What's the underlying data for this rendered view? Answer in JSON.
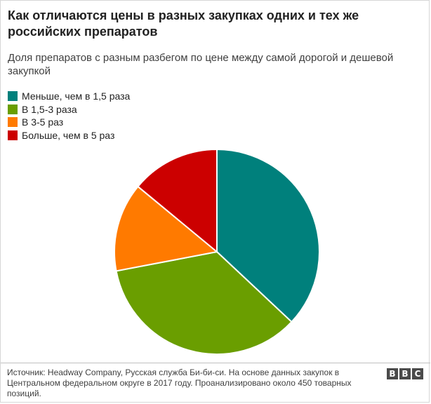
{
  "header": {
    "title": "Как отличаются цены в разных закупках одних и тех же российских препаратов",
    "subtitle": "Доля препаратов с разным разбегом по цене между самой дорогой и дешевой закупкой"
  },
  "chart_data": {
    "type": "pie",
    "title": "Как отличаются цены в разных закупках одних и тех же российских препаратов",
    "subtitle": "Доля препаратов с разным разбегом по цене между самой дорогой и дешевой закупкой",
    "legend_position": "top-left",
    "start_angle_deg": 0,
    "direction": "clockwise",
    "slices": [
      {
        "label": "Меньше, чем в 1,5 раза",
        "value": 37,
        "color": "#00807c"
      },
      {
        "label": "В 1,5-3 раза",
        "value": 35,
        "color": "#6a9e00"
      },
      {
        "label": "В 3-5 раз",
        "value": 14,
        "color": "#ff7a00"
      },
      {
        "label": "Больше, чем в 5 раз",
        "value": 14,
        "color": "#cc0000"
      }
    ]
  },
  "footer": {
    "source": "Источник: Headway Company, Русская служба Би-би-си. На основе данных закупок в Центральном федеральном округе в 2017 году. Проанализировано около 450 товарных позиций.",
    "logo_letters": [
      "B",
      "B",
      "C"
    ]
  }
}
